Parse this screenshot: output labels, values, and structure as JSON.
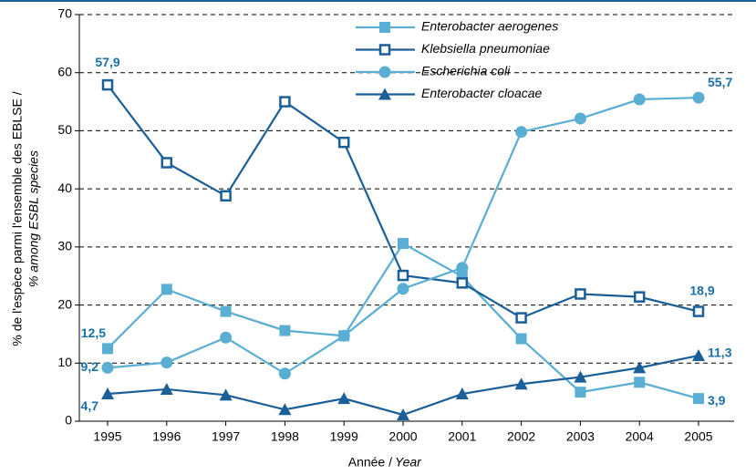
{
  "chart_data": {
    "type": "line",
    "x_label": "Année /",
    "x_label_en": "Year",
    "y_label": "% de l'espèce parmi l'ensemble des EBLSE /",
    "y_label_en": "% among ESBL species",
    "categories": [
      "1995",
      "1996",
      "1997",
      "1998",
      "1999",
      "2000",
      "2001",
      "2002",
      "2003",
      "2004",
      "2005"
    ],
    "ylim": [
      0,
      70
    ],
    "yticks": [
      0,
      10,
      20,
      30,
      40,
      50,
      60,
      70
    ],
    "grid": true,
    "series": [
      {
        "name": "Enterobacter aerogenes",
        "color": "#5aaed3",
        "marker": "square",
        "values": [
          12.5,
          22.7,
          18.9,
          15.6,
          14.7,
          30.6,
          24.9,
          14.2,
          5.0,
          6.7,
          3.9
        ],
        "value_labels": [
          "12,5",
          null,
          null,
          null,
          null,
          null,
          null,
          null,
          null,
          null,
          "3,9"
        ]
      },
      {
        "name": "Klebsiella pneumoniae",
        "color": "#1b5f98",
        "marker": "open-square",
        "values": [
          57.9,
          44.5,
          38.8,
          55.0,
          48.0,
          25.1,
          23.8,
          17.8,
          21.9,
          21.4,
          18.9
        ],
        "value_labels": [
          "57,9",
          null,
          null,
          null,
          null,
          null,
          null,
          null,
          null,
          null,
          "18,9"
        ]
      },
      {
        "name": "Escherichia coli",
        "color": "#5aaed3",
        "marker": "circle",
        "values": [
          9.2,
          10.1,
          14.4,
          8.2,
          14.7,
          22.8,
          26.4,
          49.8,
          52.1,
          55.4,
          55.7
        ],
        "value_labels": [
          "9,2",
          null,
          null,
          null,
          null,
          null,
          null,
          null,
          null,
          null,
          "55,7"
        ]
      },
      {
        "name": "Enterobacter cloacae",
        "color": "#1b5f98",
        "marker": "triangle",
        "values": [
          4.7,
          5.5,
          4.5,
          2.0,
          3.9,
          1.1,
          4.7,
          6.4,
          7.6,
          9.2,
          11.3
        ],
        "value_labels": [
          "4,7",
          null,
          null,
          null,
          null,
          null,
          null,
          null,
          null,
          null,
          "11,3"
        ]
      }
    ]
  }
}
